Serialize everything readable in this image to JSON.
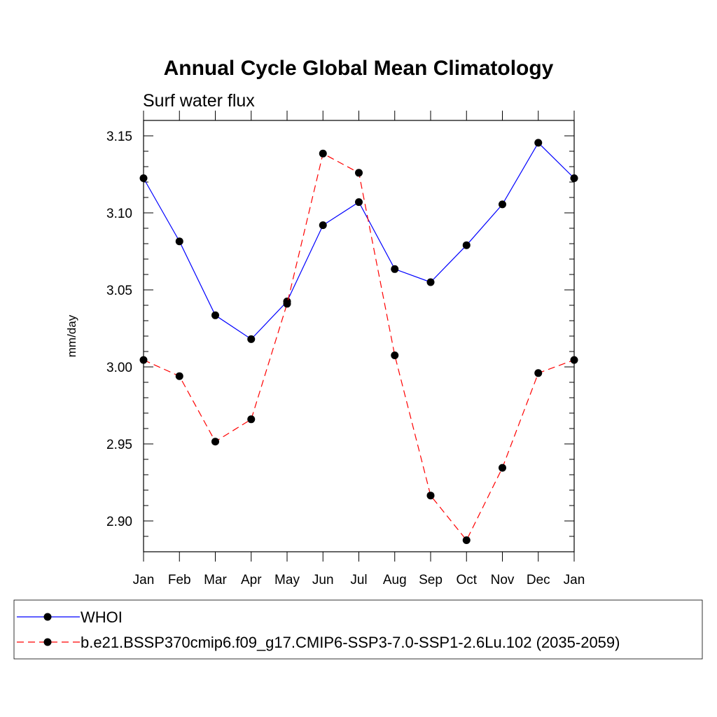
{
  "chart_data": {
    "type": "line",
    "title": "Annual Cycle Global Mean Climatology",
    "subtitle": "Surf water flux",
    "xlabel": "",
    "ylabel": "mm/day",
    "categories": [
      "Jan",
      "Feb",
      "Mar",
      "Apr",
      "May",
      "Jun",
      "Jul",
      "Aug",
      "Sep",
      "Oct",
      "Nov",
      "Dec",
      "Jan"
    ],
    "ylim": [
      2.88,
      3.16
    ],
    "yticks": [
      2.9,
      2.95,
      3.0,
      3.05,
      3.1,
      3.15
    ],
    "ytick_labels": [
      "2.90",
      "2.95",
      "3.00",
      "3.05",
      "3.10",
      "3.15"
    ],
    "grid": false,
    "legend_position": "bottom",
    "series": [
      {
        "name": "WHOI",
        "color": "#0000ff",
        "line_style": "solid",
        "values": [
          3.1225,
          3.0815,
          3.0335,
          3.018,
          3.0425,
          3.092,
          3.107,
          3.0635,
          3.055,
          3.079,
          3.1055,
          3.1455,
          3.1225
        ]
      },
      {
        "name": "b.e21.BSSP370cmip6.f09_g17.CMIP6-SSP3-7.0-SSP1-2.6Lu.102 (2035-2059)",
        "color": "#ff0000",
        "line_style": "dashed",
        "values": [
          3.0045,
          2.994,
          2.9515,
          2.966,
          3.041,
          3.1385,
          3.126,
          3.0075,
          2.9165,
          2.8875,
          2.9345,
          2.996,
          3.0045
        ]
      }
    ]
  }
}
